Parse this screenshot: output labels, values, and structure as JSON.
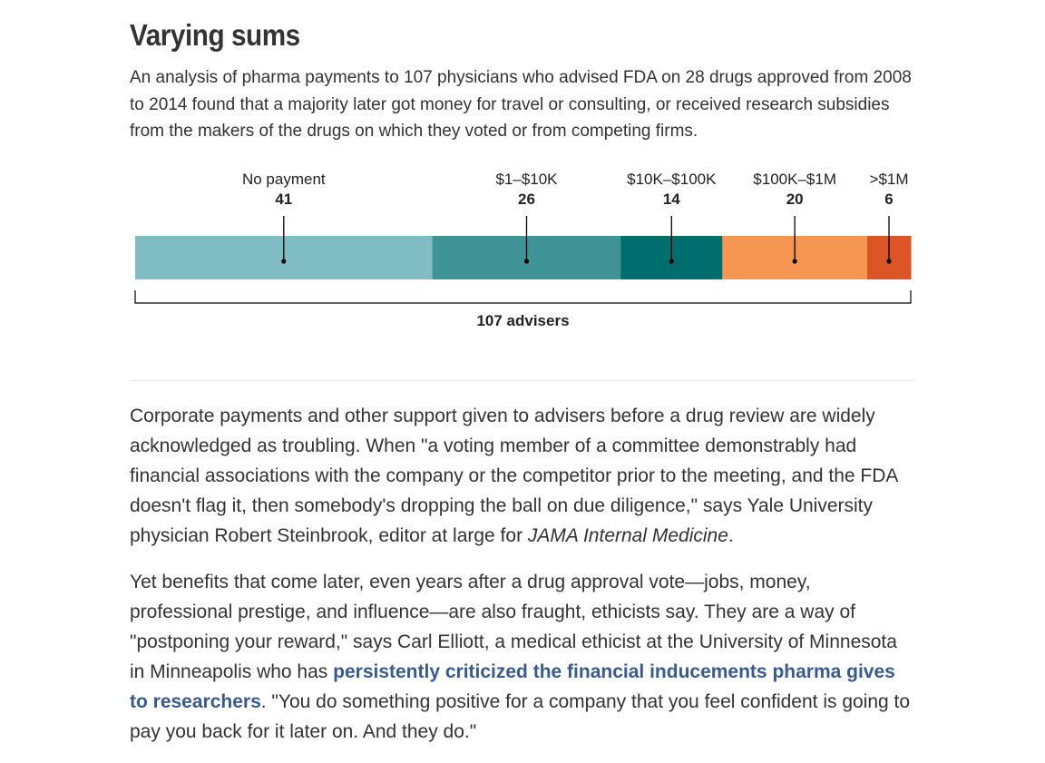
{
  "header": {
    "title": "Varying sums",
    "subtitle": "An analysis of pharma payments to 107 physicians who advised FDA on 28 drugs approved from 2008 to 2014 found that a majority later got money for travel or consulting, or received research subsidies from the makers of the drugs on which they voted or from competing firms."
  },
  "chart_data": {
    "type": "bar",
    "orientation": "horizontal-stacked",
    "categories": [
      "No payment",
      "$1–$10K",
      "$10K–$100K",
      "$100K–$1M",
      ">$1M"
    ],
    "values": [
      41,
      26,
      14,
      20,
      6
    ],
    "colors": [
      "#7fbcc3",
      "#409396",
      "#006d6e",
      "#f59753",
      "#dc5526"
    ],
    "total": 107,
    "total_label": "107 advisers"
  },
  "article": {
    "p1": {
      "text_a": "Corporate payments and other support given to advisers before a drug review are widely acknowledged as troubling. When \"a voting member of a committee demonstrably had financial associations with the company or the competitor prior to the meeting, and the FDA doesn't flag it, then somebody's dropping the ball on due diligence,\" says Yale University physician Robert Steinbrook, editor at large for ",
      "italic": "JAMA Internal Medicine",
      "text_b": "."
    },
    "p2": {
      "text_a": "Yet benefits that come later, even years after a drug approval vote—jobs, money, professional prestige, and influence—are also fraught, ethicists say. They are a way of \"postponing your reward,\" says Carl Elliott, a medical ethicist at the University of Minnesota in Minneapolis who has ",
      "link": "persistently criticized the financial inducements pharma gives to researchers",
      "text_b": ". \"You do something positive for a company that you feel confident is going to pay you back for it later on. And they do.\""
    }
  }
}
